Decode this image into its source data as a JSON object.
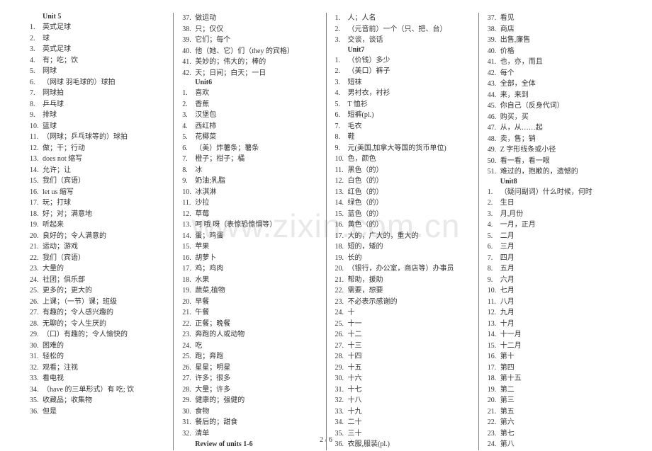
{
  "watermark": "www.zixin.com.cn",
  "footer": "2 / 6",
  "columns": [
    {
      "blocks": [
        {
          "type": "header",
          "text": "Unit 5"
        },
        {
          "type": "list",
          "items": [
            "英式足球",
            "球",
            "英式足球",
            "有；吃；饮",
            "网球",
            "（网球 羽毛球的）球拍",
            "网球拍",
            "乒乓球",
            "排球",
            "篮球",
            "（网球；乒乓球等的）球拍",
            "做；干；行动",
            "does not 缩写",
            "允许；让",
            "我们（宾语）",
            "let us 缩写",
            "玩；打球",
            "好；对；满意地",
            "听起来",
            "良好的；令人满意的",
            "运动；游戏",
            "我们（宾语）",
            "大量的",
            "社团；俱乐部",
            "更多的；更大的",
            "上课；（一节）课；班级",
            "有趣的；令人感兴趣的",
            "无聊的；令人生厌的",
            "（口）有趣的；令人愉快的",
            "困难的",
            "轻松的",
            "观看；注视",
            "看电视",
            "（have 的三单形式）有 吃; 饮",
            "收藏品；收集物",
            "但是"
          ]
        }
      ]
    },
    {
      "blocks": [
        {
          "type": "list",
          "start": 37,
          "items": [
            "做运动",
            "只；仅仅",
            "它们；每个",
            "他（她、它）们（they 的宾格）",
            "美妙的；伟大的；棒的",
            "天；日间；白天；一日"
          ]
        },
        {
          "type": "header",
          "text": "Unit6"
        },
        {
          "type": "list",
          "items": [
            "喜欢",
            "香蕉",
            "汉堡包",
            "西红柿",
            "花椰菜",
            "（美）炸薯条；薯条",
            "橙子；柑子；橘",
            "冰",
            "奶油;乳脂",
            "冰淇淋",
            "沙拉",
            "草莓",
            "呵 哦 呀（表惊恐惊惧等）",
            "蛋；鸡蛋",
            "苹果",
            "胡萝卜",
            "鸡；鸡肉",
            "水果",
            "蔬菜,植物",
            "早餐",
            "午餐",
            "正餐；晚餐",
            "奔跑的人或动物",
            "吃",
            "跑；奔跑",
            "星星；明星",
            "许多；很多",
            "大量；许多",
            "健康的；强健的",
            "食物",
            "餐后的；甜食",
            "清单"
          ]
        },
        {
          "type": "review",
          "text": "Review of units 1-6"
        }
      ]
    },
    {
      "blocks": [
        {
          "type": "list",
          "items": [
            "人；人名",
            "（元音前）一个（只、把、台）",
            "交谈，谈话"
          ]
        },
        {
          "type": "header",
          "text": "Unit7"
        },
        {
          "type": "list",
          "items": [
            "（价钱）多少",
            "（美口）裤子",
            "短袜",
            "男衬衣，衬衫",
            "T 恤衫",
            "短裤(pl.)",
            "毛衣",
            "鞋",
            "元(美国,加拿大等国的货币单位)",
            "色，颜色",
            "黑色（的）",
            "白色（的）",
            "红色（的）",
            "绿色（的）",
            "蓝色（的）",
            "黄色（的）",
            "大的，广大的，重大的",
            "短的，矮的",
            "长的",
            "（银行，办公室，商店等）办事员",
            "帮助，援助",
            "需要，想要",
            "不必表示感谢的",
            "十",
            "十一",
            "十二",
            "十三",
            "十四",
            "十五",
            "十六",
            "十七",
            "十八",
            "十九",
            "二十",
            "三十",
            "衣服,服装(pl.)"
          ]
        }
      ]
    },
    {
      "blocks": [
        {
          "type": "list",
          "start": 37,
          "items": [
            "看见",
            "商店",
            "出售,廉售",
            "价格",
            "也，亦，而且",
            "每个",
            "全部，全体",
            "来，来到",
            "你自己（反身代词）",
            "购买，买",
            "从，从……起",
            "卖，售；销",
            "Z 字形线条或小径",
            "看一看，看一眼",
            "难过的，抱歉的，遗憾的"
          ]
        },
        {
          "type": "header",
          "text": "Unit8"
        },
        {
          "type": "list",
          "items": [
            "（疑问副词）什么时候，何时",
            "生日",
            "月,月份",
            "一月，正月",
            "二月",
            "三月",
            "四月",
            "五月",
            "六月",
            "七月",
            "八月",
            "九月",
            "十月",
            "十一月",
            "十二月",
            "第十",
            "第四",
            "第十五",
            "第二",
            "第三",
            "第五",
            "第六",
            "第七",
            "第八"
          ]
        }
      ]
    }
  ]
}
